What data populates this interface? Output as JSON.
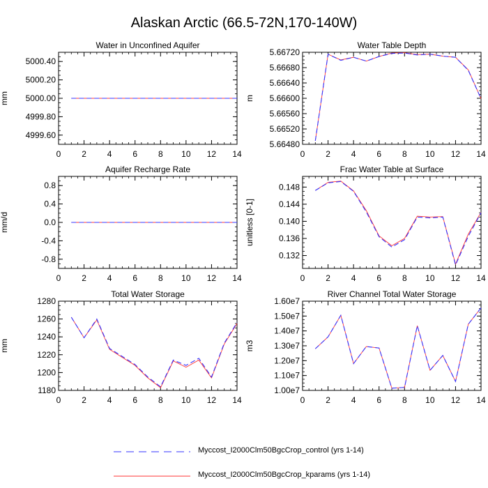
{
  "title": "Alaskan Arctic (66.5-72N,170-140W)",
  "legend": [
    {
      "label": "Myccost_I2000Clm50BgcCrop_control (yrs 1-14)",
      "color": "#3333ff",
      "dash": "dashed"
    },
    {
      "label": "Myccost_I2000Clm50BgcCrop_kparams (yrs 1-14)",
      "color": "#ff3333",
      "dash": "solid"
    }
  ],
  "chart_data": [
    {
      "type": "line",
      "title": "Water in Unconfined Aquifer",
      "xlabel": "",
      "ylabel": "mm",
      "xlim": [
        0,
        14
      ],
      "ylim": [
        4999.5,
        5000.5
      ],
      "xticks": [
        0,
        2,
        4,
        6,
        8,
        10,
        12,
        14
      ],
      "yticks": [
        4999.6,
        4999.8,
        5000.0,
        5000.2,
        5000.4
      ],
      "yticklabels": [
        "4999.60",
        "4999.80",
        "5000.00",
        "5000.20",
        "5000.40"
      ],
      "x": [
        1,
        2,
        3,
        4,
        5,
        6,
        7,
        8,
        9,
        10,
        11,
        12,
        13,
        14
      ],
      "series": [
        {
          "values": [
            5000,
            5000,
            5000,
            5000,
            5000,
            5000,
            5000,
            5000,
            5000,
            5000,
            5000,
            5000,
            5000,
            5000
          ]
        },
        {
          "values": [
            5000,
            5000,
            5000,
            5000,
            5000,
            5000,
            5000,
            5000,
            5000,
            5000,
            5000,
            5000,
            5000,
            5000
          ]
        }
      ]
    },
    {
      "type": "line",
      "title": "Water Table Depth",
      "xlabel": "",
      "ylabel": "m",
      "xlim": [
        0,
        14
      ],
      "ylim": [
        5.6648,
        5.6672
      ],
      "xticks": [
        0,
        2,
        4,
        6,
        8,
        10,
        12,
        14
      ],
      "yticks": [
        5.6648,
        5.6652,
        5.6656,
        5.666,
        5.6664,
        5.6668,
        5.6672
      ],
      "yticklabels": [
        "5.66480",
        "5.66520",
        "5.66560",
        "5.66600",
        "5.66640",
        "5.66680",
        "5.66720"
      ],
      "x": [
        1,
        2,
        3,
        4,
        5,
        6,
        7,
        8,
        9,
        10,
        11,
        12,
        13,
        14
      ],
      "series": [
        {
          "values": [
            5.66489,
            5.66715,
            5.66699,
            5.66707,
            5.66697,
            5.66709,
            5.66717,
            5.66718,
            5.66713,
            5.66715,
            5.6671,
            5.66707,
            5.66673,
            5.66599
          ]
        },
        {
          "values": [
            5.66489,
            5.66715,
            5.667,
            5.66707,
            5.66697,
            5.66709,
            5.66718,
            5.66719,
            5.66714,
            5.66715,
            5.6671,
            5.66707,
            5.66674,
            5.66599
          ]
        }
      ]
    },
    {
      "type": "line",
      "title": "Aquifer Recharge Rate",
      "xlabel": "",
      "ylabel": "mm/d",
      "xlim": [
        0,
        14
      ],
      "ylim": [
        -1,
        1
      ],
      "xticks": [
        0,
        2,
        4,
        6,
        8,
        10,
        12,
        14
      ],
      "yticks": [
        -0.8,
        -0.4,
        0.0,
        0.4,
        0.8
      ],
      "yticklabels": [
        "-0.8",
        "-0.4",
        "0.0",
        "0.4",
        "0.8"
      ],
      "x": [
        1,
        2,
        3,
        4,
        5,
        6,
        7,
        8,
        9,
        10,
        11,
        12,
        13,
        14
      ],
      "series": [
        {
          "values": [
            0,
            0,
            0,
            0,
            0,
            0,
            0,
            0,
            0,
            0,
            0,
            0,
            0,
            0
          ]
        },
        {
          "values": [
            0,
            0,
            0,
            0,
            0,
            0,
            0,
            0,
            0,
            0,
            0,
            0,
            0,
            0
          ]
        }
      ]
    },
    {
      "type": "line",
      "title": "Frac Water Table at Surface",
      "xlabel": "",
      "ylabel": "unitless [0-1]",
      "xlim": [
        0,
        14
      ],
      "ylim": [
        0.129,
        0.1505
      ],
      "xticks": [
        0,
        2,
        4,
        6,
        8,
        10,
        12,
        14
      ],
      "yticks": [
        0.132,
        0.136,
        0.14,
        0.144,
        0.148
      ],
      "yticklabels": [
        "0.132",
        "0.136",
        "0.140",
        "0.144",
        "0.148"
      ],
      "x": [
        1,
        2,
        3,
        4,
        5,
        6,
        7,
        8,
        9,
        10,
        11,
        12,
        13,
        14
      ],
      "series": [
        {
          "values": [
            0.1472,
            0.149,
            0.1493,
            0.147,
            0.1422,
            0.1364,
            0.134,
            0.1357,
            0.141,
            0.1408,
            0.141,
            0.1298,
            0.1365,
            0.142
          ]
        },
        {
          "values": [
            0.1472,
            0.1491,
            0.1494,
            0.1471,
            0.1425,
            0.1366,
            0.1343,
            0.136,
            0.1412,
            0.141,
            0.1411,
            0.13,
            0.137,
            0.1421
          ]
        }
      ]
    },
    {
      "type": "line",
      "title": "Total Water Storage",
      "xlabel": "",
      "ylabel": "mm",
      "xlim": [
        0,
        14
      ],
      "ylim": [
        1180,
        1280
      ],
      "xticks": [
        0,
        2,
        4,
        6,
        8,
        10,
        12,
        14
      ],
      "yticks": [
        1180,
        1200,
        1220,
        1240,
        1260,
        1280
      ],
      "yticklabels": [
        "1180",
        "1200",
        "1220",
        "1240",
        "1260",
        "1280"
      ],
      "x": [
        1,
        2,
        3,
        4,
        5,
        6,
        7,
        8,
        9,
        10,
        11,
        12,
        13,
        14
      ],
      "series": [
        {
          "values": [
            1262,
            1239,
            1260,
            1227,
            1218,
            1209,
            1195,
            1184,
            1214,
            1208,
            1216,
            1195,
            1233,
            1256
          ]
        },
        {
          "values": [
            1262,
            1239,
            1259,
            1226,
            1217,
            1208,
            1194,
            1183,
            1213,
            1206,
            1214,
            1194,
            1232,
            1255
          ]
        }
      ]
    },
    {
      "type": "line",
      "title": "River Channel Total Water Storage",
      "xlabel": "",
      "ylabel": "m3",
      "xlim": [
        0,
        14
      ],
      "ylim": [
        10000000,
        16000000
      ],
      "xticks": [
        0,
        2,
        4,
        6,
        8,
        10,
        12,
        14
      ],
      "yticks": [
        10000000,
        11000000,
        12000000,
        13000000,
        14000000,
        15000000,
        16000000
      ],
      "yticklabels": [
        "1.00e7",
        "1.10e7",
        "1.20e7",
        "1.30e7",
        "1.40e7",
        "1.50e7",
        "1.60e7"
      ],
      "x": [
        1,
        2,
        3,
        4,
        5,
        6,
        7,
        8,
        9,
        10,
        11,
        12,
        13,
        14
      ],
      "series": [
        {
          "values": [
            12800000,
            13600000,
            15050000,
            11800000,
            12950000,
            12850000,
            10150000,
            10200000,
            14350000,
            11350000,
            12350000,
            10600000,
            14450000,
            15550000
          ]
        },
        {
          "values": [
            12800000,
            13600000,
            15050000,
            11800000,
            12950000,
            12850000,
            10150000,
            10200000,
            14350000,
            11350000,
            12350000,
            10600000,
            14450000,
            15550000
          ]
        }
      ]
    }
  ]
}
